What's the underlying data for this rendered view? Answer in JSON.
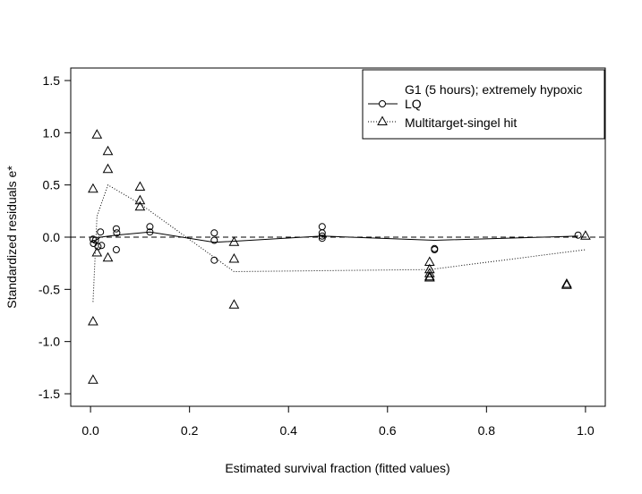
{
  "chart_data": {
    "type": "scatter",
    "title": "",
    "xlabel": "Estimated survival fraction (fitted values)",
    "ylabel": "Standardized residuals e*",
    "xlim": [
      -0.04,
      1.04
    ],
    "ylim": [
      -1.62,
      1.62
    ],
    "x_ticks": [
      0.0,
      0.2,
      0.4,
      0.6,
      0.8,
      1.0
    ],
    "x_tick_labels": [
      "0.0",
      "0.2",
      "0.4",
      "0.6",
      "0.8",
      "1.0"
    ],
    "y_ticks": [
      -1.5,
      -1.0,
      -0.5,
      0.0,
      0.5,
      1.0,
      1.5
    ],
    "y_tick_labels": [
      "-1.5",
      "-1.0",
      "-0.5",
      "0.0",
      "0.5",
      "1.0",
      "1.5"
    ],
    "grid": false,
    "reference_line_y": 0,
    "legend": {
      "placement": "top-right",
      "title": "G1 (5 hours); extremely hypoxic",
      "entries": [
        "LQ",
        "Multitarget-singel hit"
      ]
    },
    "series": [
      {
        "name": "LQ",
        "marker": "circle",
        "line": "solid",
        "points": [
          [
            0.005,
            -0.02
          ],
          [
            0.006,
            -0.06
          ],
          [
            0.01,
            -0.03
          ],
          [
            0.015,
            -0.09
          ],
          [
            0.02,
            0.05
          ],
          [
            0.022,
            -0.08
          ],
          [
            0.052,
            0.08
          ],
          [
            0.053,
            0.04
          ],
          [
            0.052,
            -0.12
          ],
          [
            0.12,
            0.1
          ],
          [
            0.12,
            0.05
          ],
          [
            0.25,
            0.04
          ],
          [
            0.25,
            -0.03
          ],
          [
            0.25,
            -0.22
          ],
          [
            0.468,
            0.1
          ],
          [
            0.468,
            0.04
          ],
          [
            0.468,
            0.01
          ],
          [
            0.468,
            -0.01
          ],
          [
            0.695,
            -0.11
          ],
          [
            0.695,
            -0.12
          ],
          [
            0.985,
            0.02
          ]
        ],
        "smooth": [
          [
            0.005,
            -0.05
          ],
          [
            0.02,
            0.0
          ],
          [
            0.052,
            0.02
          ],
          [
            0.12,
            0.05
          ],
          [
            0.25,
            -0.05
          ],
          [
            0.468,
            0.01
          ],
          [
            0.695,
            -0.03
          ],
          [
            0.985,
            0.01
          ]
        ]
      },
      {
        "name": "Multitarget-singel hit",
        "marker": "triangle",
        "line": "dotted",
        "points": [
          [
            0.005,
            0.46
          ],
          [
            0.005,
            -0.81
          ],
          [
            0.005,
            -1.37
          ],
          [
            0.013,
            0.98
          ],
          [
            0.013,
            -0.15
          ],
          [
            0.035,
            0.82
          ],
          [
            0.035,
            0.65
          ],
          [
            0.035,
            -0.2
          ],
          [
            0.1,
            0.48
          ],
          [
            0.1,
            0.35
          ],
          [
            0.1,
            0.29
          ],
          [
            0.29,
            -0.05
          ],
          [
            0.29,
            -0.21
          ],
          [
            0.29,
            -0.65
          ],
          [
            0.685,
            -0.24
          ],
          [
            0.685,
            -0.31
          ],
          [
            0.685,
            -0.35
          ],
          [
            0.685,
            -0.38
          ],
          [
            0.685,
            -0.39
          ],
          [
            0.962,
            -0.45
          ],
          [
            0.962,
            -0.46
          ],
          [
            1.0,
            0.01
          ]
        ],
        "smooth": [
          [
            0.005,
            -0.62
          ],
          [
            0.013,
            0.2
          ],
          [
            0.035,
            0.5
          ],
          [
            0.1,
            0.32
          ],
          [
            0.29,
            -0.33
          ],
          [
            0.685,
            -0.31
          ],
          [
            1.0,
            -0.12
          ]
        ]
      }
    ]
  }
}
